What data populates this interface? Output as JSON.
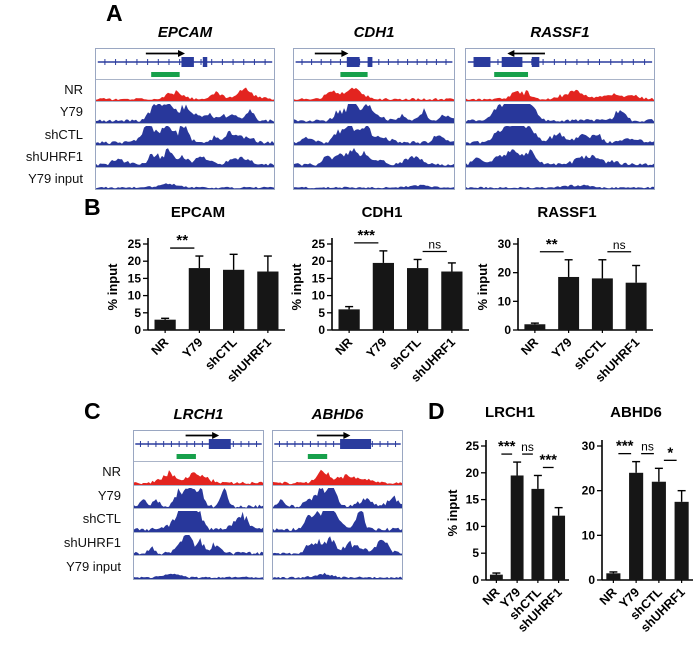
{
  "panels": {
    "a": {
      "label": "A",
      "row_labels": [
        "NR",
        "Y79",
        "shCTL",
        "shUHRF1",
        "Y79 input"
      ],
      "genes": [
        {
          "name": "EPCAM",
          "strand": "+"
        },
        {
          "name": "CDH1",
          "strand": "+"
        },
        {
          "name": "RASSF1",
          "strand": "-"
        }
      ]
    },
    "b": {
      "label": "B"
    },
    "c": {
      "label": "C",
      "row_labels": [
        "NR",
        "Y79",
        "shCTL",
        "shUHRF1",
        "Y79 input"
      ],
      "genes": [
        {
          "name": "LRCH1",
          "strand": "+"
        },
        {
          "name": "ABHD6",
          "strand": "+"
        }
      ]
    },
    "d": {
      "label": "D"
    }
  },
  "colors": {
    "nr_track": "#e3241f",
    "chip_track": "#28379b",
    "gene_model": "#2a3b9d",
    "cpg_island": "#17a04b",
    "bar_fill": "#161616"
  },
  "chart_data": [
    {
      "type": "bar",
      "panel": "B",
      "title": "EPCAM",
      "ylabel": "% input",
      "ylim": [
        0,
        25
      ],
      "yticks": [
        0,
        5,
        10,
        15,
        20,
        25
      ],
      "categories": [
        "NR",
        "Y79",
        "shCTL",
        "shUHRF1"
      ],
      "values": [
        3,
        18,
        17.5,
        17
      ],
      "errors": [
        0.4,
        3.5,
        4.5,
        4.5
      ],
      "significance": [
        {
          "from": 0,
          "to": 1,
          "label": "**"
        }
      ]
    },
    {
      "type": "bar",
      "panel": "B",
      "title": "CDH1",
      "ylabel": "% input",
      "ylim": [
        0,
        25
      ],
      "yticks": [
        0,
        5,
        10,
        15,
        20,
        25
      ],
      "categories": [
        "NR",
        "Y79",
        "shCTL",
        "shUHRF1"
      ],
      "values": [
        6,
        19.5,
        18,
        17
      ],
      "errors": [
        0.8,
        3.5,
        2.5,
        2.5
      ],
      "significance": [
        {
          "from": 0,
          "to": 1,
          "label": "***"
        },
        {
          "from": 2,
          "to": 3,
          "label": "ns"
        }
      ]
    },
    {
      "type": "bar",
      "panel": "B",
      "title": "RASSF1",
      "ylabel": "% input",
      "ylim": [
        0,
        30
      ],
      "yticks": [
        0,
        10,
        20,
        30
      ],
      "categories": [
        "NR",
        "Y79",
        "shCTL",
        "shUHRF1"
      ],
      "values": [
        2,
        18.5,
        18,
        16.5
      ],
      "errors": [
        0.4,
        6,
        6.5,
        6
      ],
      "significance": [
        {
          "from": 0,
          "to": 1,
          "label": "**"
        },
        {
          "from": 2,
          "to": 3,
          "label": "ns"
        }
      ]
    },
    {
      "type": "bar",
      "panel": "D",
      "title": "LRCH1",
      "ylabel": "% input",
      "ylim": [
        0,
        25
      ],
      "yticks": [
        0,
        5,
        10,
        15,
        20,
        25
      ],
      "categories": [
        "NR",
        "Y79",
        "shCTL",
        "shUHRF1"
      ],
      "values": [
        1,
        19.5,
        17,
        12
      ],
      "errors": [
        0.3,
        2.5,
        2.5,
        1.5
      ],
      "significance": [
        {
          "from": 0,
          "to": 1,
          "label": "***"
        },
        {
          "from": 1,
          "to": 2,
          "label": "ns"
        },
        {
          "from": 2,
          "to": 3,
          "label": "***"
        }
      ]
    },
    {
      "type": "bar",
      "panel": "D",
      "title": "ABHD6",
      "ylabel": "",
      "ylim": [
        0,
        30
      ],
      "yticks": [
        0,
        10,
        20,
        30
      ],
      "categories": [
        "NR",
        "Y79",
        "shCTL",
        "shUHRF1"
      ],
      "values": [
        1.5,
        24,
        22,
        17.5
      ],
      "errors": [
        0.3,
        2.5,
        3,
        2.5
      ],
      "significance": [
        {
          "from": 0,
          "to": 1,
          "label": "***"
        },
        {
          "from": 1,
          "to": 2,
          "label": "ns"
        },
        {
          "from": 2,
          "to": 3,
          "label": "*"
        }
      ]
    }
  ]
}
